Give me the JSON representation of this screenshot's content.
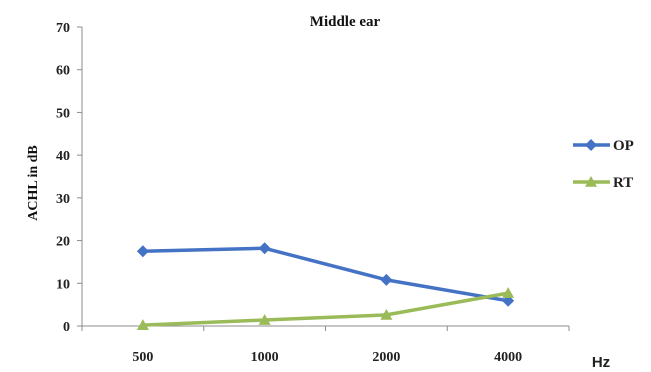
{
  "chart_data": {
    "type": "line",
    "title": "Middle ear",
    "xlabel": "",
    "ylabel": "ACHL in dB",
    "x_unit": "Hz",
    "categories": [
      "500",
      "1000",
      "2000",
      "4000"
    ],
    "ylim": [
      0,
      70
    ],
    "yticks": [
      0,
      10,
      20,
      30,
      40,
      50,
      60,
      70
    ],
    "grid": false,
    "legend_position": "right",
    "series": [
      {
        "name": "OP",
        "values": [
          17.5,
          18.2,
          10.8,
          5.9
        ],
        "color": "#4472c4",
        "marker": "diamond"
      },
      {
        "name": "RT",
        "values": [
          0.2,
          1.4,
          2.6,
          7.7
        ],
        "color": "#9bbb59",
        "marker": "triangle"
      }
    ]
  }
}
